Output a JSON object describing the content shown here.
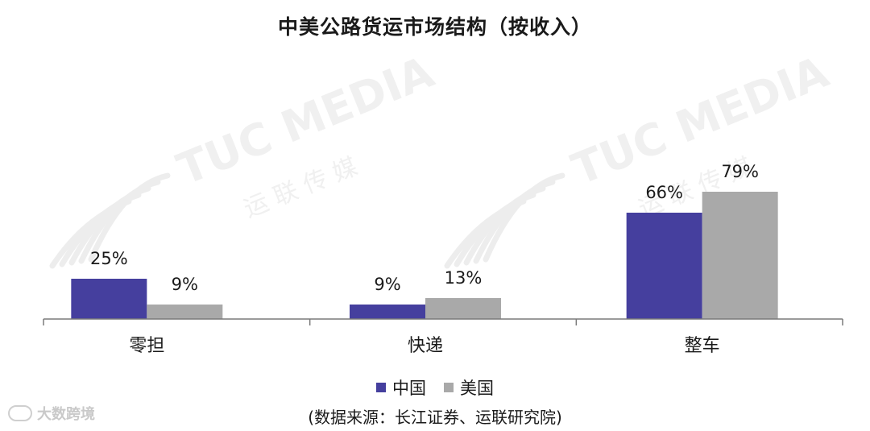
{
  "title": "中美公路货运市场结构（按收入）",
  "legend": {
    "items": [
      {
        "label": "中国",
        "color": "#453f9e"
      },
      {
        "label": "美国",
        "color": "#a9a9a9"
      }
    ]
  },
  "source_note": "(数据来源：长江证券、运联研究院)",
  "watermark": {
    "brand": "TUC MEDIA",
    "subtitle": "运 联 传 媒"
  },
  "corner_logo": {
    "text": "大数跨境"
  },
  "chart_data": {
    "type": "bar",
    "title": "中美公路货运市场结构（按收入）",
    "categories": [
      "零担",
      "快递",
      "整车"
    ],
    "series": [
      {
        "name": "中国",
        "values": [
          25,
          9,
          66
        ],
        "labels": [
          "25%",
          "9%",
          "66%"
        ],
        "color": "#453f9e"
      },
      {
        "name": "美国",
        "values": [
          9,
          13,
          79
        ],
        "labels": [
          "9%",
          "13%",
          "79%"
        ],
        "color": "#a9a9a9"
      }
    ],
    "unit": "%",
    "ylim": [
      0,
      100
    ],
    "grid": false,
    "legend_position": "bottom"
  }
}
